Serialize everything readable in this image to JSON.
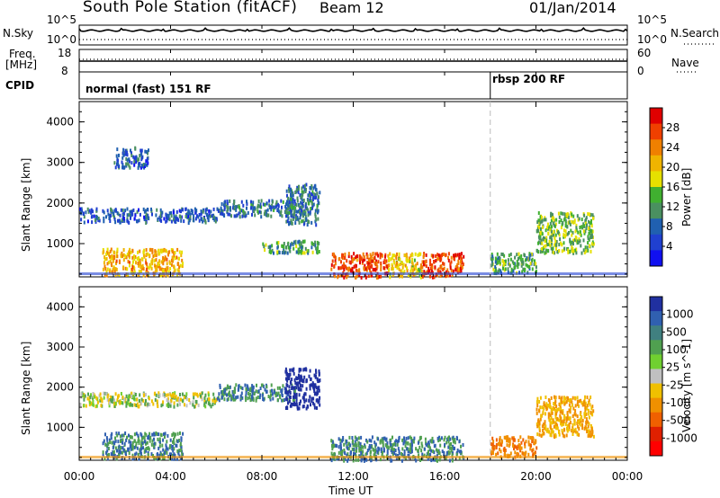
{
  "header": {
    "title": "South Pole Station (fitACF)",
    "beam": "Beam 12",
    "date": "01/Jan/2014"
  },
  "housekeeping": {
    "nsky_label": "N.Sky",
    "nsearch_label": "N.Search",
    "nsky_tick_top": "10^5",
    "nsky_tick_bottom": "10^0",
    "nsearch_tick_top": "10^5",
    "nsearch_tick_bottom": "10^0",
    "freq_label_line1": "Freq.",
    "freq_label_line2": "[MHz]",
    "freq_tick_top": "18",
    "freq_tick_bottom": "8",
    "nave_label": "Nave",
    "nave_tick_top": "60",
    "nave_tick_bottom": "0",
    "cpid_label": "CPID",
    "cpid_segments": [
      {
        "label": "normal (fast) 151 RF",
        "start_hour": 0
      },
      {
        "label": "rbsp 200 RF",
        "start_hour": 18
      }
    ]
  },
  "power_colorbar": {
    "label": "Power [dB]",
    "ticks": [
      "28",
      "24",
      "20",
      "16",
      "12",
      "8",
      "4"
    ],
    "colors": [
      "#e00000",
      "#f04000",
      "#f08000",
      "#f0b400",
      "#e6e000",
      "#40b030",
      "#4a9060",
      "#2060b0",
      "#2040d0",
      "#1010f0"
    ]
  },
  "velocity_colorbar": {
    "label": "Velocity [m s^-1]",
    "ticks": [
      "1000",
      "500",
      "100",
      "25",
      "-25",
      "-100",
      "-500",
      "-1000"
    ],
    "colors": [
      "#2030a0",
      "#3060b0",
      "#408080",
      "#50a050",
      "#70d030",
      "#c0c0c0",
      "#f0c000",
      "#f09000",
      "#f06000",
      "#e02000",
      "#ff0000"
    ]
  },
  "chart_data": [
    {
      "type": "heatmap",
      "title": "Power",
      "ylabel": "Slant Range [km]",
      "xlabel": "",
      "x_ticks": [
        "00:00",
        "04:00",
        "08:00",
        "12:00",
        "16:00",
        "20:00",
        "00:00"
      ],
      "y_ticks": [
        "1000",
        "2000",
        "3000",
        "4000"
      ],
      "xlim": [
        0,
        24
      ],
      "ylim": [
        180,
        4500
      ],
      "colorbar": "Power [dB]",
      "regions": [
        {
          "x": [
            0.0,
            6.0
          ],
          "y": [
            1550,
            1900
          ],
          "value": 6
        },
        {
          "x": [
            6.0,
            10.0
          ],
          "y": [
            1700,
            2100
          ],
          "value": 8
        },
        {
          "x": [
            1.0,
            4.5
          ],
          "y": [
            250,
            900
          ],
          "value": 22
        },
        {
          "x": [
            1.5,
            3.0
          ],
          "y": [
            2900,
            3400
          ],
          "value": 6
        },
        {
          "x": [
            8.0,
            10.5
          ],
          "y": [
            800,
            1100
          ],
          "value": 12
        },
        {
          "x": [
            9.0,
            10.5
          ],
          "y": [
            1500,
            2500
          ],
          "value": 8
        },
        {
          "x": [
            11.0,
            13.5
          ],
          "y": [
            200,
            800
          ],
          "value": 28
        },
        {
          "x": [
            13.5,
            15.0
          ],
          "y": [
            200,
            800
          ],
          "value": 20
        },
        {
          "x": [
            15.0,
            16.8
          ],
          "y": [
            200,
            800
          ],
          "value": 28
        },
        {
          "x": [
            18.0,
            20.0
          ],
          "y": [
            300,
            800
          ],
          "value": 12
        },
        {
          "x": [
            20.0,
            22.5
          ],
          "y": [
            800,
            1800
          ],
          "value": 14
        }
      ]
    },
    {
      "type": "heatmap",
      "title": "Velocity",
      "ylabel": "Slant Range [km]",
      "xlabel": "Time UT",
      "x_ticks": [
        "00:00",
        "04:00",
        "08:00",
        "12:00",
        "16:00",
        "20:00",
        "00:00"
      ],
      "y_ticks": [
        "1000",
        "2000",
        "3000",
        "4000"
      ],
      "xlim": [
        0,
        24
      ],
      "ylim": [
        180,
        4500
      ],
      "colorbar": "Velocity [m s^-1]",
      "regions": [
        {
          "x": [
            0.0,
            6.0
          ],
          "y": [
            1550,
            1900
          ],
          "value": 0
        },
        {
          "x": [
            6.0,
            9.5
          ],
          "y": [
            1700,
            2100
          ],
          "value": 100
        },
        {
          "x": [
            1.0,
            4.5
          ],
          "y": [
            250,
            900
          ],
          "value": 100
        },
        {
          "x": [
            9.0,
            10.5
          ],
          "y": [
            1500,
            2500
          ],
          "value": 1000
        },
        {
          "x": [
            11.0,
            16.8
          ],
          "y": [
            200,
            800
          ],
          "value": 100
        },
        {
          "x": [
            18.0,
            20.0
          ],
          "y": [
            300,
            800
          ],
          "value": -500
        },
        {
          "x": [
            20.0,
            22.5
          ],
          "y": [
            800,
            1800
          ],
          "value": -100
        }
      ]
    }
  ]
}
